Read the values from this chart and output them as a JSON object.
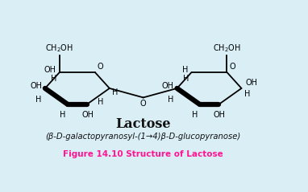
{
  "bg_color": "#daeef6",
  "title": "Lactose",
  "subtitle": "(β-D-galactopyranosyl-(1→4)β-D-glucopyranose)",
  "caption": "Figure 14.10 Structure of Lactose",
  "caption_color": "#ff1493",
  "title_color": "#111111",
  "subtitle_color": "#111111",
  "lw_thin": 1.3,
  "lw_thick": 4.5,
  "fs_label": 7.0,
  "fs_title": 11.5,
  "fs_caption": 7.5
}
